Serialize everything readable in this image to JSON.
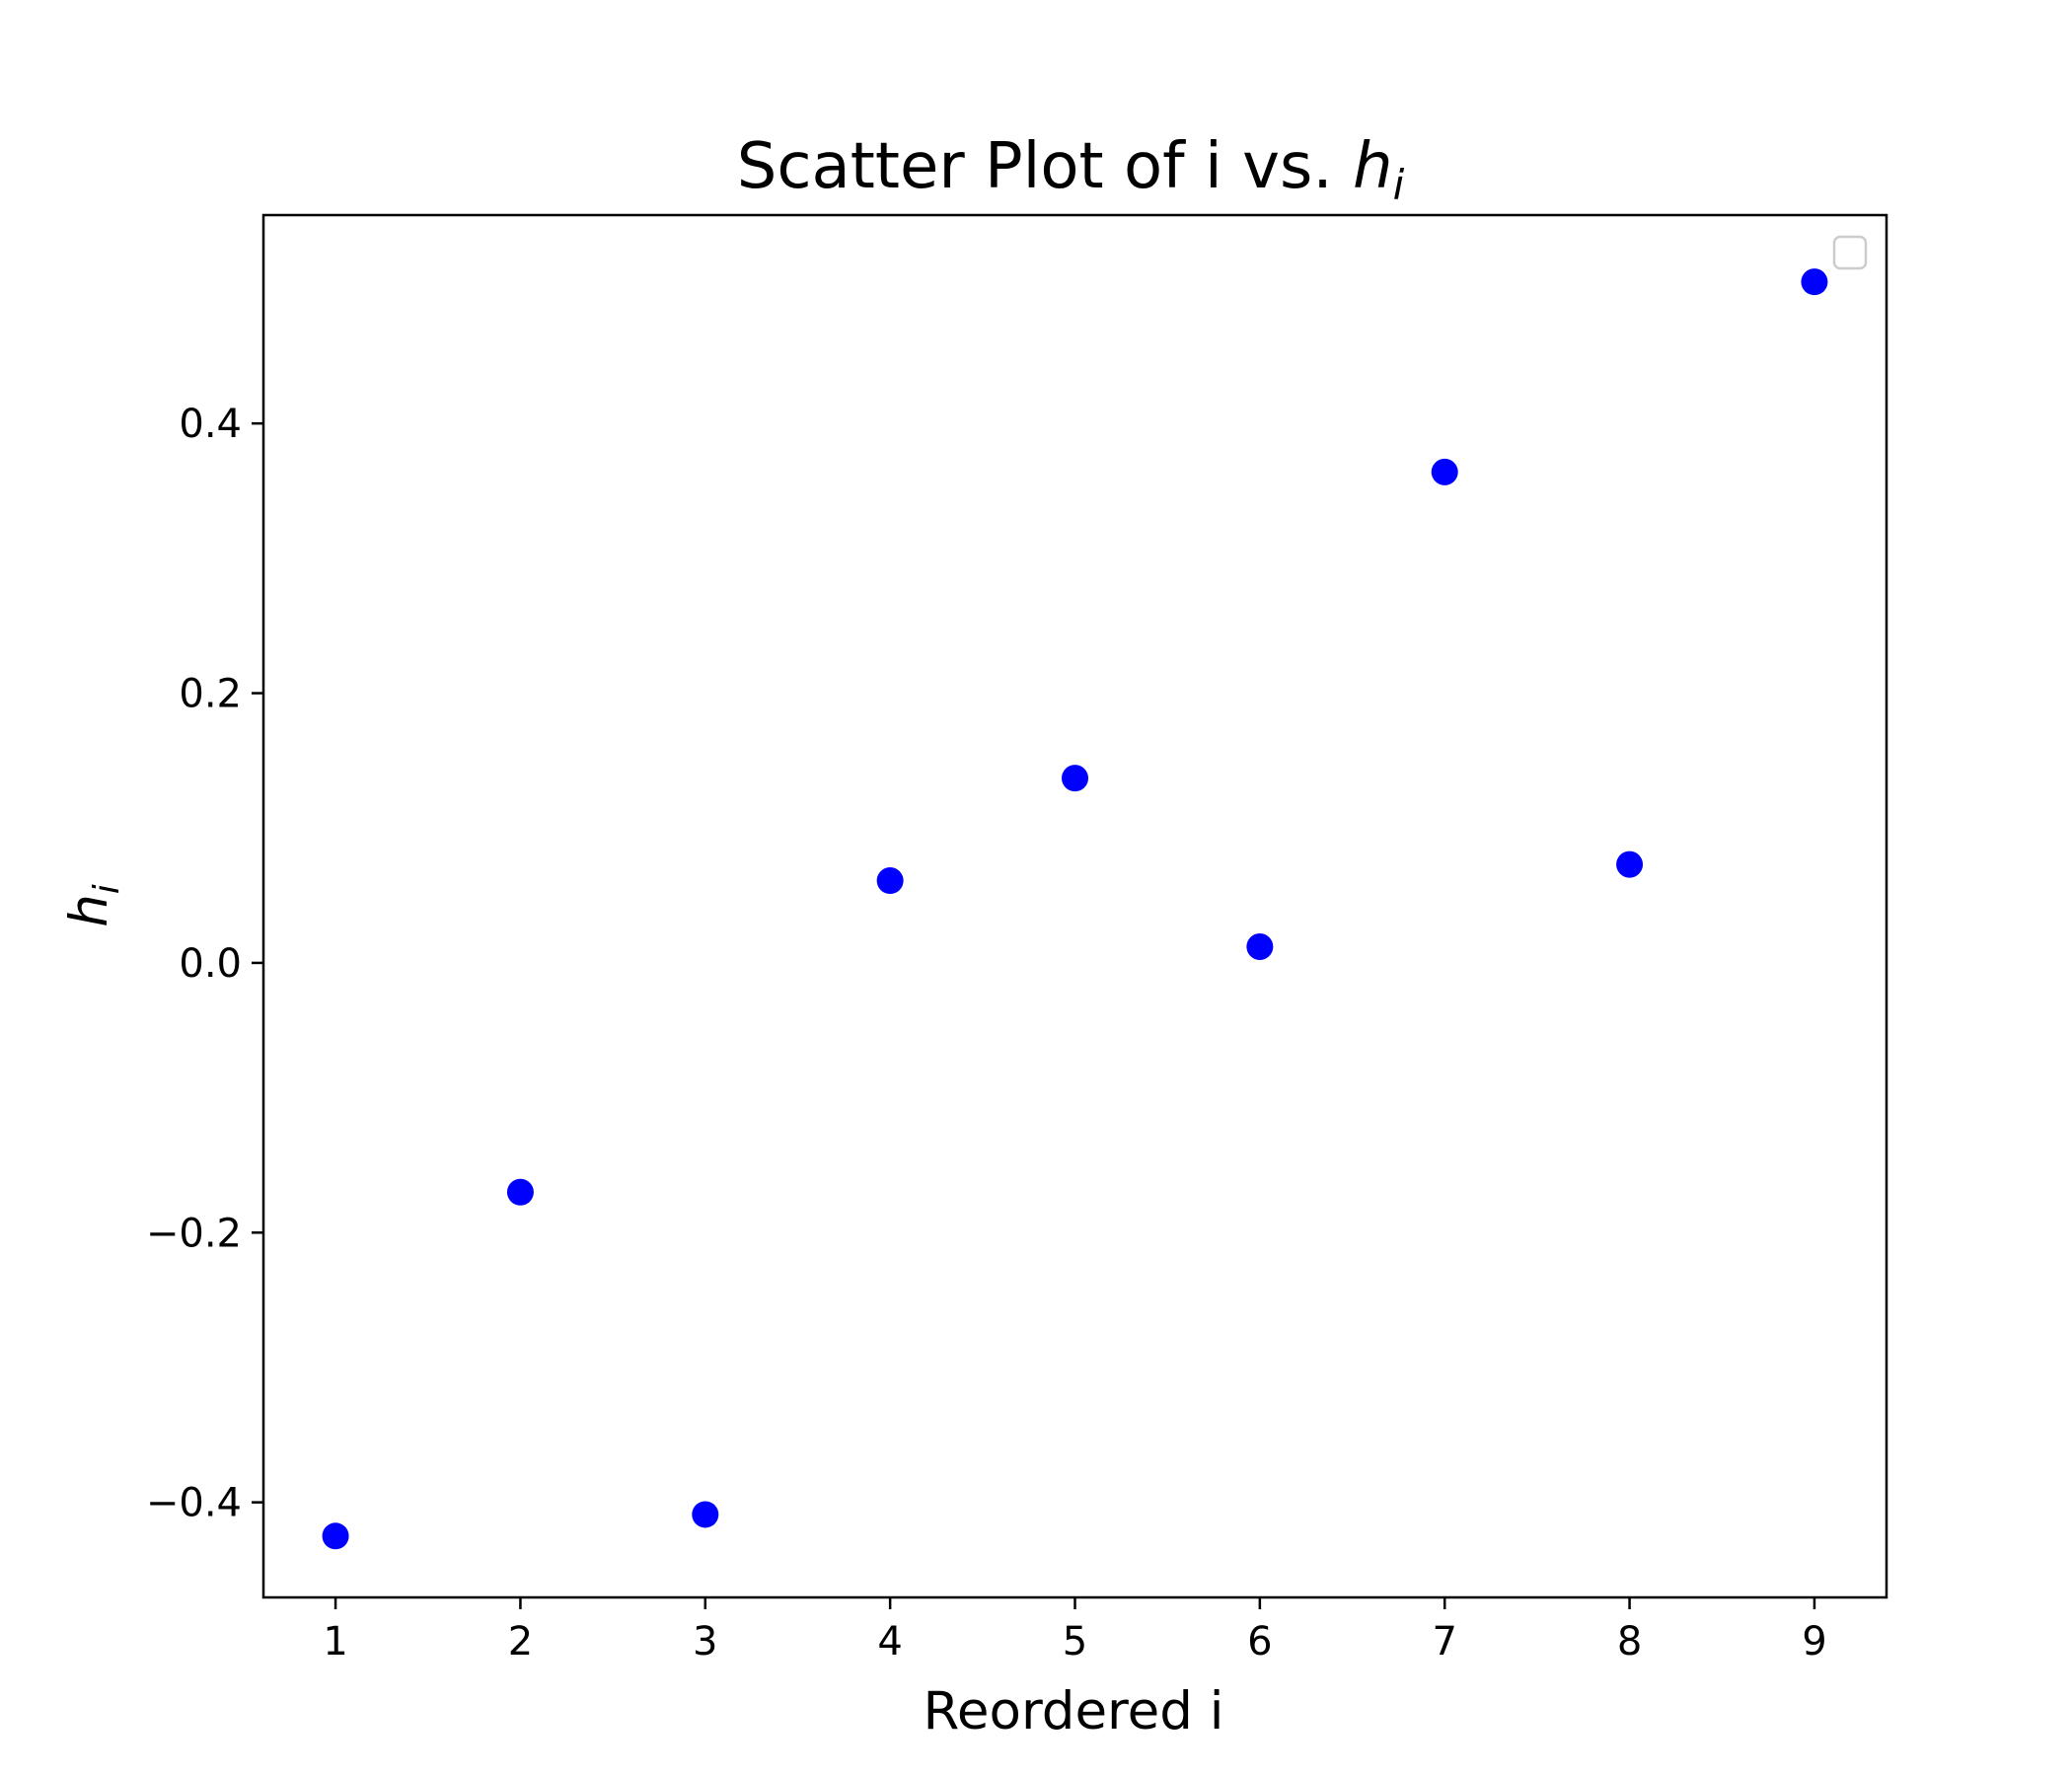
{
  "chart_data": {
    "type": "scatter",
    "title": {
      "prefix": "Scatter Plot of i vs. ",
      "math_base": "h",
      "math_sub": "i"
    },
    "xlabel": "Reordered i",
    "ylabel": {
      "base": "h",
      "sub": "i"
    },
    "xlim": [
      0.61,
      9.39
    ],
    "ylim": [
      -0.4705,
      0.5545
    ],
    "xticks": [
      1,
      2,
      3,
      4,
      5,
      6,
      7,
      8,
      9
    ],
    "yticks": [
      -0.4,
      -0.2,
      0.0,
      0.2,
      0.4
    ],
    "ytick_labels": [
      "−0.4",
      "−0.2",
      "0.0",
      "0.2",
      "0.4"
    ],
    "grid": false,
    "legend": {
      "placement": "top-right",
      "entries": []
    },
    "marker_color": "#0000ff",
    "series": [
      {
        "x": [
          1,
          2,
          3,
          4,
          5,
          6,
          7,
          8,
          9
        ],
        "y": [
          -0.425,
          -0.17,
          -0.409,
          0.061,
          0.137,
          0.012,
          0.364,
          0.073,
          0.505
        ]
      }
    ]
  }
}
